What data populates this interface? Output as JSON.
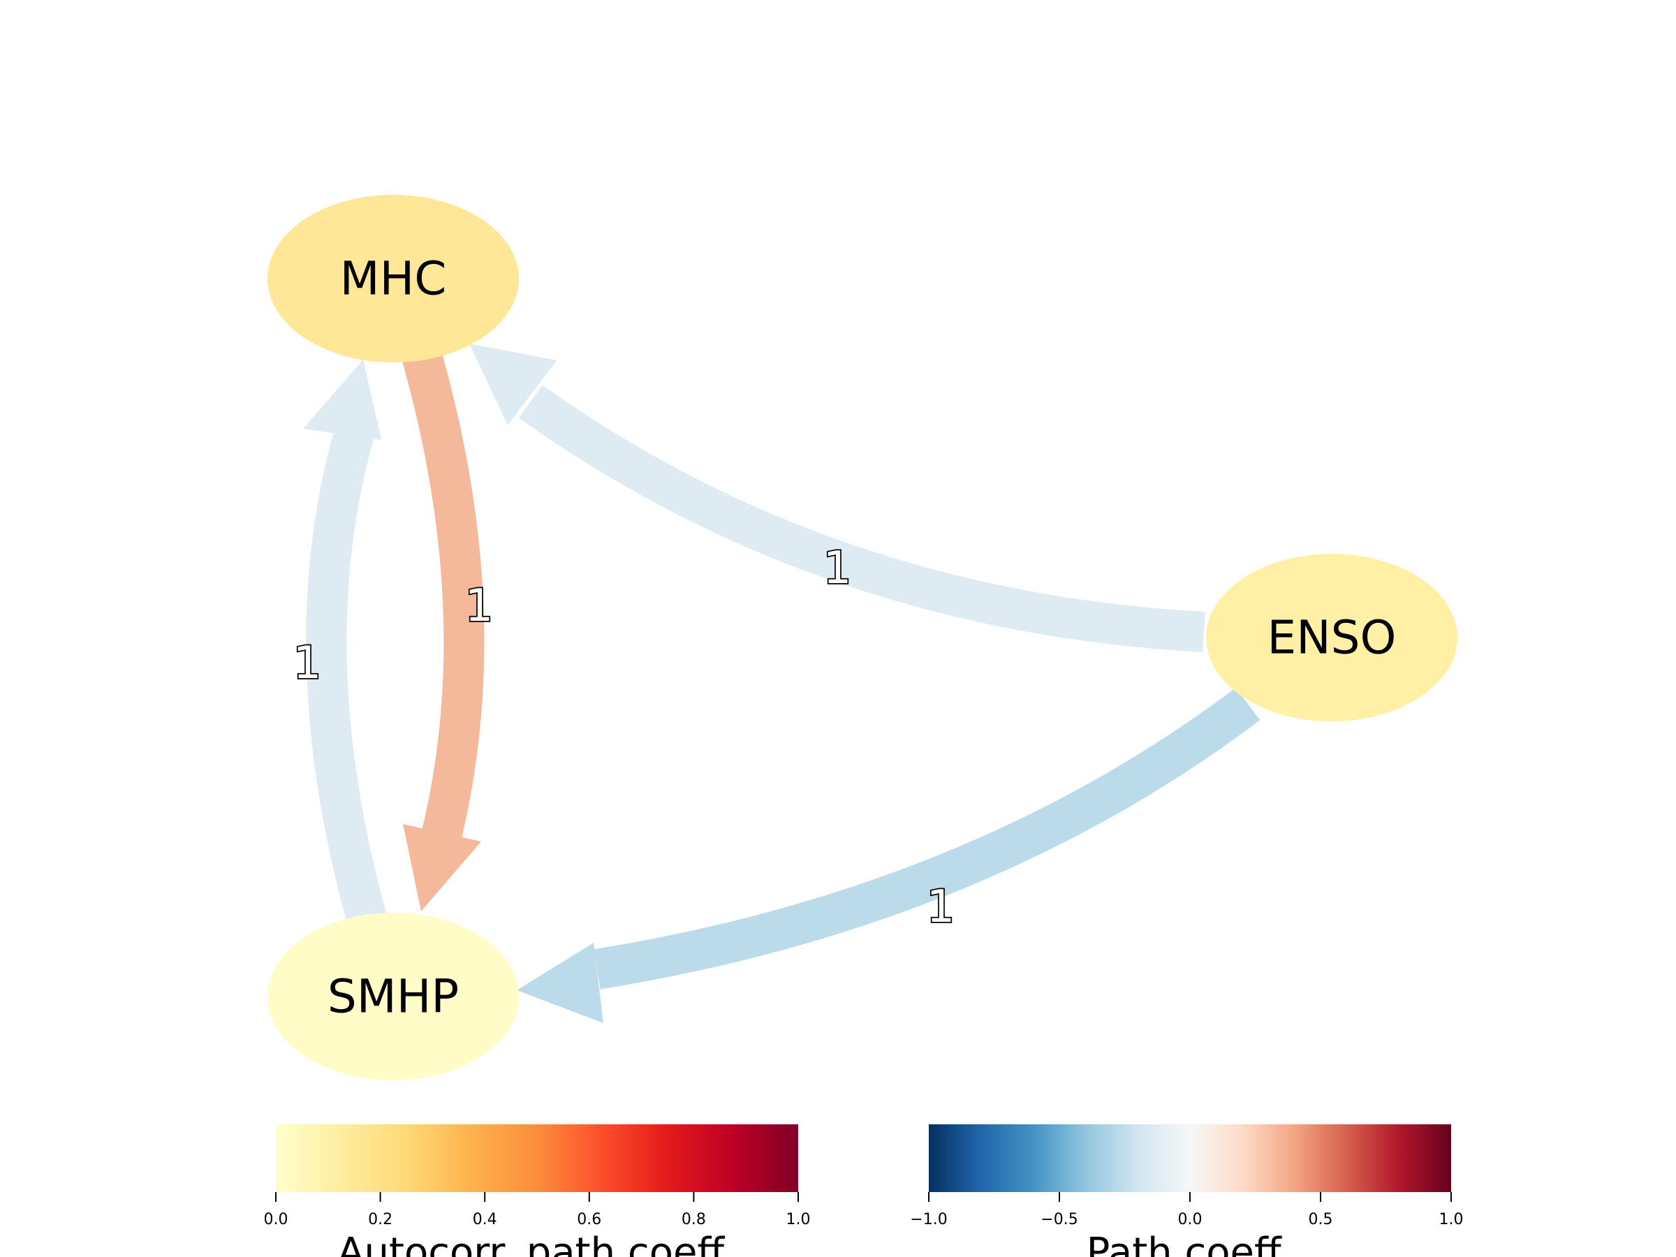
{
  "nodes": [
    {
      "id": "MHC",
      "label": "MHC",
      "color": "#fee797"
    },
    {
      "id": "SMHP",
      "label": "SMHP",
      "color": "#fffcc8"
    },
    {
      "id": "ENSO",
      "label": "ENSO",
      "color": "#fff0a6"
    }
  ],
  "edges": [
    {
      "from": "SMHP",
      "to": "MHC",
      "label": "1",
      "color": "#deebf2"
    },
    {
      "from": "MHC",
      "to": "SMHP",
      "label": "1",
      "color": "#f4b99b"
    },
    {
      "from": "ENSO",
      "to": "MHC",
      "label": "1",
      "color": "#deebf2"
    },
    {
      "from": "ENSO",
      "to": "SMHP",
      "label": "1",
      "color": "#bcdbea"
    }
  ],
  "colorbars": [
    {
      "title": "Autocorr. path coeff.",
      "colormap": "YlOrRd",
      "ticks": [
        "0.0",
        "0.2",
        "0.4",
        "0.6",
        "0.8",
        "1.0"
      ],
      "stops": [
        "#ffffcc",
        "#ffeda0",
        "#fed976",
        "#feb24c",
        "#fd8d3c",
        "#fc4e2a",
        "#e31a1c",
        "#bd0026",
        "#800026"
      ]
    },
    {
      "title": "Path coeff.",
      "colormap": "RdBu_r",
      "ticks": [
        "−1.0",
        "−0.5",
        "0.0",
        "0.5",
        "1.0"
      ],
      "stops": [
        "#053061",
        "#2166ac",
        "#4393c3",
        "#92c5de",
        "#d1e5f0",
        "#f7f7f7",
        "#fddbc7",
        "#f4a582",
        "#d6604d",
        "#b2182b",
        "#67001f"
      ]
    }
  ]
}
